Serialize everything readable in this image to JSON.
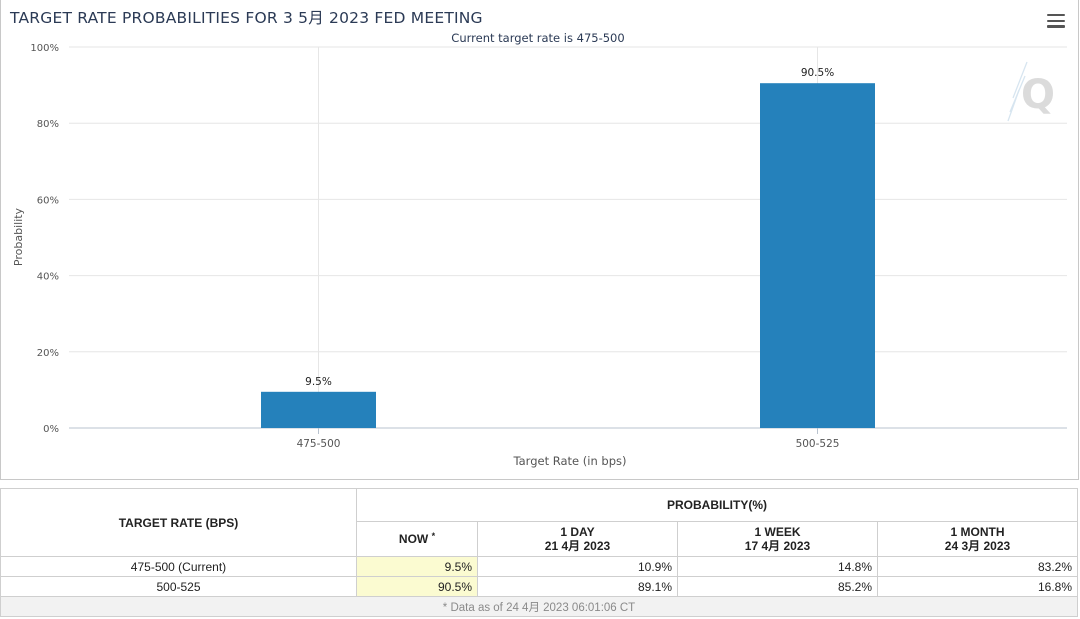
{
  "chart_data": {
    "type": "bar",
    "title": "TARGET RATE PROBABILITIES FOR 3 5月 2023 FED MEETING",
    "subtitle": "Current target rate is 475-500",
    "xlabel": "Target Rate (in bps)",
    "ylabel": "Probability",
    "categories": [
      "475-500",
      "500-525"
    ],
    "values": [
      9.5,
      90.5
    ],
    "data_labels": [
      "9.5%",
      "90.5%"
    ],
    "ylim": [
      0,
      100
    ],
    "yticks": [
      0,
      20,
      40,
      60,
      80,
      100
    ],
    "ytick_labels": [
      "0%",
      "20%",
      "40%",
      "60%",
      "80%",
      "100%"
    ],
    "bar_color": "#2581bb",
    "grid": true
  },
  "menu": {
    "icon": "hamburger-menu-icon"
  },
  "watermark": {
    "icon": "quikstrike-q-logo"
  },
  "table": {
    "target_header": "TARGET RATE (BPS)",
    "prob_header": "PROBABILITY(%)",
    "cols": [
      {
        "label": "NOW",
        "marker": "*",
        "date": ""
      },
      {
        "label": "1 DAY",
        "date": "21 4月 2023"
      },
      {
        "label": "1 WEEK",
        "date": "17 4月 2023"
      },
      {
        "label": "1 MONTH",
        "date": "24 3月 2023"
      }
    ],
    "rows": [
      {
        "rate": "475-500 (Current)",
        "now": "9.5%",
        "day": "10.9%",
        "week": "14.8%",
        "month": "83.2%"
      },
      {
        "rate": "500-525",
        "now": "90.5%",
        "day": "89.1%",
        "week": "85.2%",
        "month": "16.8%"
      }
    ],
    "footnote": "* Data as of 24 4月 2023 06:01:06 CT"
  }
}
